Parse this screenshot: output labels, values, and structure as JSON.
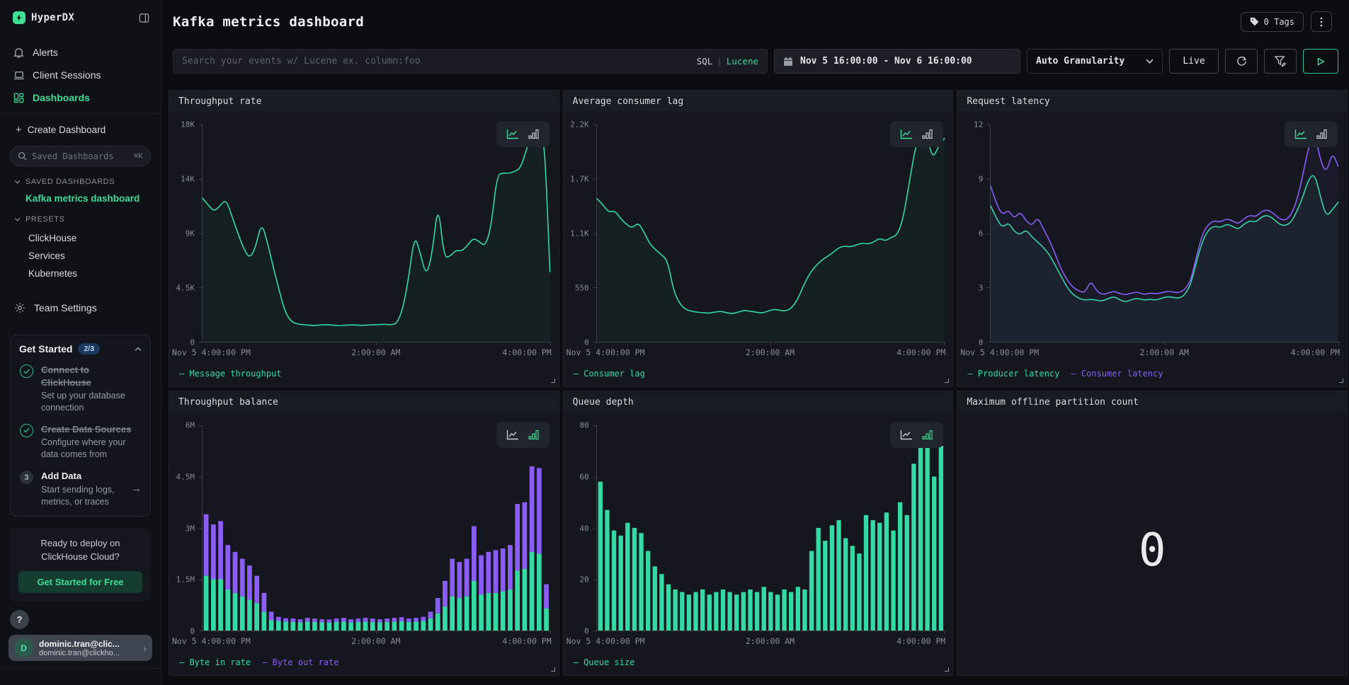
{
  "colors": {
    "accent_green": "#3ddc97",
    "series_green": "#35d9a2",
    "series_purple": "#8b5cf6",
    "badge_blue": "#1b3a5c"
  },
  "icons": {
    "logo": "lightning-bolt",
    "alerts": "bell",
    "client_sessions": "laptop",
    "dashboards": "layout-grid",
    "collapse": "sidebar-collapse",
    "create": "plus",
    "sidebar_search": "magnifier",
    "sections": "chevron-down",
    "team_settings": "gear",
    "step_done": "check-circle",
    "tags": "tag",
    "more": "kebab-dots",
    "date": "calendar",
    "refresh": "circular-arrow",
    "filter": "funnel-edit",
    "run": "play-triangle",
    "chart_toggle": [
      "line-chart",
      "bar-chart"
    ]
  },
  "sidebar": {
    "brand": "HyperDX",
    "nav": [
      {
        "label": "Alerts"
      },
      {
        "label": "Client Sessions"
      },
      {
        "label": "Dashboards",
        "active": true
      }
    ],
    "create_label": "Create Dashboard",
    "search": {
      "placeholder": "Saved Dashboards",
      "shortcut": "⌘K"
    },
    "saved_section": {
      "title": "SAVED DASHBOARDS",
      "items": [
        "Kafka metrics dashboard"
      ]
    },
    "presets_section": {
      "title": "PRESETS",
      "items": [
        "ClickHouse",
        "Services",
        "Kubernetes"
      ]
    },
    "team_settings_label": "Team Settings",
    "get_started": {
      "title": "Get Started",
      "badge": "2/3",
      "steps": [
        {
          "title": "Connect to ClickHouse",
          "desc": "Set up your database connection",
          "done": true
        },
        {
          "title": "Create Data Sources",
          "desc": "Configure where your data comes from",
          "done": true
        },
        {
          "title": "Add Data",
          "desc": "Start sending logs, metrics, or traces",
          "done": false,
          "num": "3",
          "arrow": "→"
        }
      ]
    },
    "promo": {
      "line1": "Ready to deploy on",
      "line2": "ClickHouse Cloud?",
      "button": "Get Started for Free"
    },
    "help_label": "?",
    "user": {
      "initial": "D",
      "name": "dominic.tran@clic...",
      "email": "dominic.tran@clickho..."
    }
  },
  "header": {
    "title": "Kafka metrics dashboard",
    "tags_label": "0 Tags"
  },
  "toolbar": {
    "search_placeholder": "Search your events w/ Lucene ex. column:foo",
    "lang_sql": "SQL",
    "lang_lucene": "Lucene",
    "date_range": "Nov 5 16:00:00 - Nov 6 16:00:00",
    "granularity": "Auto Granularity",
    "live_label": "Live"
  },
  "chart_data": [
    {
      "type": "line",
      "title": "Throughput rate",
      "toggle": "line",
      "ymax": 18000,
      "yticks": [
        "18K",
        "14K",
        "9K",
        "4.5K",
        "0"
      ],
      "xticks": [
        "Nov 5 4:00:00 PM",
        "2:00:00 AM",
        "4:00:00 PM"
      ],
      "series": [
        {
          "name": "Message throughput",
          "color": "series_green",
          "values": [
            11900,
            11300,
            10800,
            11300,
            11800,
            10400,
            9000,
            7700,
            6900,
            7800,
            9900,
            8300,
            6200,
            4300,
            2500,
            1700,
            1480,
            1420,
            1380,
            1350,
            1400,
            1430,
            1380,
            1340,
            1370,
            1400,
            1390,
            1360,
            1390,
            1410,
            1430,
            1450,
            1400,
            1520,
            2700,
            5300,
            8900,
            7300,
            5400,
            7300,
            11600,
            7000,
            7050,
            7600,
            7500,
            8000,
            8600,
            8300,
            7900,
            9500,
            13800,
            14000,
            13950,
            14100,
            14400,
            15900,
            17600,
            16500,
            17500,
            5800
          ]
        }
      ]
    },
    {
      "type": "line",
      "title": "Average consumer lag",
      "toggle": "line",
      "ymax": 2200,
      "yticks": [
        "2.2K",
        "1.7K",
        "1.1K",
        "550",
        "0"
      ],
      "xticks": [
        "Nov 5 4:00:00 PM",
        "2:00:00 AM",
        "4:00:00 PM"
      ],
      "series": [
        {
          "name": "Consumer lag",
          "color": "series_green",
          "values": [
            1450,
            1390,
            1310,
            1330,
            1250,
            1190,
            1150,
            1210,
            1110,
            990,
            930,
            880,
            820,
            520,
            390,
            330,
            310,
            300,
            295,
            290,
            300,
            310,
            295,
            285,
            300,
            320,
            310,
            300,
            290,
            310,
            330,
            320,
            310,
            340,
            420,
            560,
            680,
            760,
            820,
            860,
            900,
            950,
            970,
            960,
            980,
            1000,
            990,
            1010,
            1050,
            1020,
            1060,
            1080,
            1250,
            1600,
            1950,
            2150,
            2100,
            1850,
            1980,
            2060
          ]
        }
      ]
    },
    {
      "type": "line",
      "title": "Request latency",
      "toggle": "line",
      "ymax": 12,
      "yticks": [
        "12",
        "9",
        "6",
        "3",
        "0"
      ],
      "xticks": [
        "Nov 5 4:00:00 PM",
        "2:00:00 AM",
        "4:00:00 PM"
      ],
      "series": [
        {
          "name": "Producer latency",
          "color": "series_green",
          "values": [
            7.5,
            6.8,
            6.3,
            6.6,
            6.1,
            5.9,
            6.2,
            5.8,
            5.5,
            5.2,
            4.8,
            4.2,
            3.6,
            3.0,
            2.6,
            2.4,
            2.3,
            2.35,
            2.3,
            2.25,
            2.4,
            2.5,
            2.3,
            2.2,
            2.35,
            2.4,
            2.3,
            2.35,
            2.3,
            2.4,
            2.5,
            2.45,
            2.4,
            2.6,
            3.2,
            4.5,
            5.6,
            6.2,
            6.4,
            6.3,
            6.5,
            6.4,
            6.2,
            6.5,
            6.7,
            6.6,
            6.9,
            7.0,
            6.8,
            6.5,
            6.4,
            6.6,
            7.2,
            8.0,
            9.0,
            9.3,
            8.0,
            6.9,
            7.3,
            7.7
          ]
        },
        {
          "name": "Consumer latency",
          "color": "series_purple",
          "values": [
            8.6,
            7.6,
            7.0,
            7.3,
            6.8,
            7.2,
            6.7,
            6.4,
            6.9,
            6.2,
            5.6,
            4.8,
            4.0,
            3.4,
            3.0,
            2.8,
            2.7,
            3.4,
            2.8,
            2.6,
            2.7,
            2.8,
            2.65,
            2.6,
            2.7,
            2.75,
            2.6,
            2.7,
            2.65,
            2.7,
            2.8,
            2.75,
            2.7,
            2.9,
            3.4,
            4.8,
            6.0,
            6.5,
            6.7,
            6.6,
            6.8,
            6.7,
            6.5,
            6.8,
            7.0,
            6.9,
            7.2,
            7.3,
            7.1,
            6.8,
            6.7,
            7.0,
            7.8,
            9.2,
            10.8,
            11.6,
            10.0,
            9.3,
            10.5,
            9.7
          ]
        }
      ]
    },
    {
      "type": "stacked-bar",
      "title": "Throughput balance",
      "toggle": "bars",
      "ymax": 6000000,
      "yticks": [
        "6M",
        "4.5M",
        "3M",
        "1.5M",
        "0"
      ],
      "xticks": [
        "Nov 5 4:00:00 PM",
        "2:00:00 AM",
        "4:00:00 PM"
      ],
      "series": [
        {
          "name": "Byte in rate",
          "color": "series_green",
          "values": [
            1600000,
            1500000,
            1500000,
            1200000,
            1100000,
            1000000,
            900000,
            800000,
            550000,
            300000,
            280000,
            260000,
            250000,
            240000,
            260000,
            250000,
            240000,
            230000,
            250000,
            260000,
            240000,
            250000,
            260000,
            250000,
            240000,
            250000,
            260000,
            270000,
            250000,
            260000,
            280000,
            350000,
            500000,
            700000,
            1000000,
            950000,
            1000000,
            1450000,
            1050000,
            1100000,
            1100000,
            1150000,
            1200000,
            1750000,
            1800000,
            2300000,
            2250000,
            650000
          ]
        },
        {
          "name": "Byte out rate",
          "color": "series_purple",
          "values": [
            1800000,
            1600000,
            1700000,
            1300000,
            1200000,
            1100000,
            1000000,
            800000,
            550000,
            250000,
            120000,
            100000,
            100000,
            90000,
            110000,
            100000,
            90000,
            90000,
            100000,
            110000,
            90000,
            100000,
            110000,
            100000,
            90000,
            100000,
            110000,
            120000,
            100000,
            110000,
            120000,
            200000,
            450000,
            750000,
            1100000,
            1050000,
            1100000,
            1600000,
            1150000,
            1200000,
            1250000,
            1250000,
            1300000,
            1950000,
            1950000,
            2500000,
            2500000,
            700000
          ]
        }
      ]
    },
    {
      "type": "bar",
      "title": "Queue depth",
      "toggle": "bars",
      "ymax": 80,
      "yticks": [
        "80",
        "60",
        "40",
        "20",
        "0"
      ],
      "xticks": [
        "Nov 5 4:00:00 PM",
        "2:00:00 AM",
        "4:00:00 PM"
      ],
      "series": [
        {
          "name": "Queue size",
          "color": "series_green",
          "values": [
            58,
            47,
            39,
            37,
            42,
            40,
            38,
            31,
            25,
            22,
            18,
            16,
            15,
            14,
            15,
            16,
            14,
            15,
            16,
            15,
            14,
            15,
            16,
            15,
            17,
            15,
            14,
            16,
            15,
            17,
            16,
            31,
            40,
            35,
            41,
            43,
            36,
            33,
            30,
            45,
            43,
            42,
            46,
            39,
            50,
            45,
            65,
            75,
            74,
            60,
            72
          ]
        }
      ]
    },
    {
      "type": "number",
      "title": "Maximum offline partition count",
      "value": "0"
    }
  ]
}
